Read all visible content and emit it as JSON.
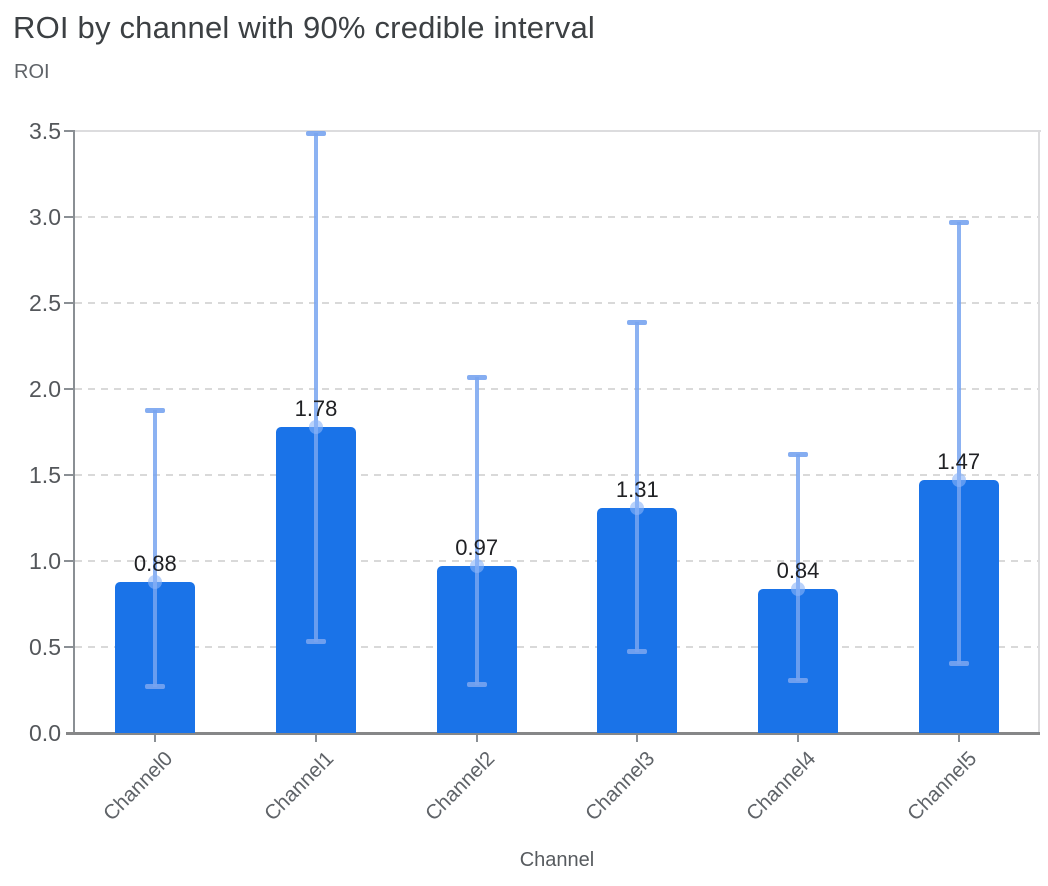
{
  "page": {
    "background": "#ffffff"
  },
  "chart_data": {
    "type": "bar",
    "title": "ROI by channel with 90% credible interval",
    "ylabel": "ROI",
    "xlabel": "Channel",
    "categories": [
      "Channel0",
      "Channel1",
      "Channel2",
      "Channel3",
      "Channel4",
      "Channel5"
    ],
    "series": [
      {
        "name": "ROI",
        "values": [
          0.88,
          1.78,
          0.97,
          1.31,
          0.84,
          1.47
        ]
      }
    ],
    "value_labels": [
      "0.88",
      "1.78",
      "0.97",
      "1.31",
      "0.84",
      "1.47"
    ],
    "error_bars": {
      "kind": "90% credible interval",
      "low": [
        0.27,
        0.53,
        0.28,
        0.47,
        0.3,
        0.4
      ],
      "high": [
        1.88,
        3.49,
        2.07,
        2.39,
        1.62,
        2.97
      ]
    },
    "ylim": [
      0,
      3.5
    ],
    "ytick_step": 0.5,
    "ytick_labels": [
      "0.0",
      "0.5",
      "1.0",
      "1.5",
      "2.0",
      "2.5",
      "3.0",
      "3.5"
    ],
    "grid": "horizontal-dashed",
    "legend": "none",
    "colors": {
      "bar": "#1a73e8",
      "error_bar": "#8ab0f2",
      "grid": "#d9d9d9",
      "axis": "#8a8f94",
      "plot_border": "#dcdcde",
      "title_text": "#3c4043",
      "tick_text": "#54575b",
      "value_text": "#202124"
    }
  }
}
